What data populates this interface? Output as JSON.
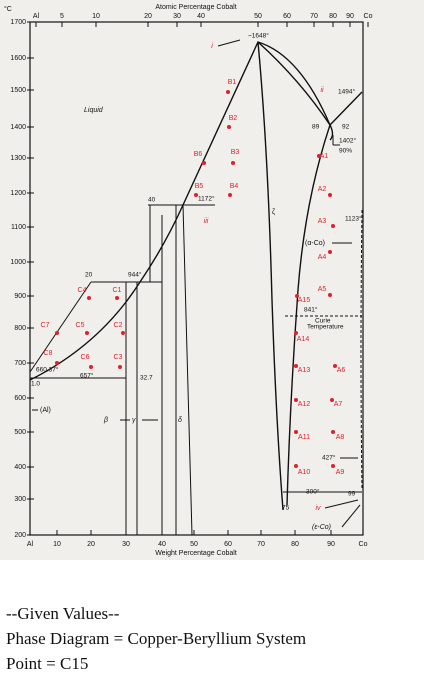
{
  "diagram": {
    "top_axis_title": "Atomic Percentage Cobalt",
    "bottom_axis_title": "Weight Percentage Cobalt",
    "temperature_unit": "°C",
    "top_ticks": [
      "Al",
      "5",
      "10",
      "20",
      "30",
      "40",
      "50",
      "60",
      "70",
      "80",
      "90",
      "Co"
    ],
    "bottom_ticks": [
      "Al",
      "10",
      "20",
      "30",
      "40",
      "50",
      "60",
      "70",
      "80",
      "90",
      "Co"
    ],
    "left_ticks": [
      "1700",
      "1600",
      "1500",
      "1400",
      "1300",
      "1200",
      "1100",
      "1000",
      "900",
      "800",
      "700",
      "600",
      "500",
      "400",
      "300",
      "200"
    ],
    "phases": [
      "Liquid",
      "ζ",
      "(α-Co)",
      "(ε-Co)",
      "β",
      "γ",
      "δ",
      "(Al)"
    ],
    "annotations": [
      "~1648°",
      "1494°",
      "89",
      "92",
      "1402°",
      "90%",
      "1172°",
      "40",
      "1123°",
      "944°",
      "20",
      "841°",
      "Curie",
      "Temperature",
      "660.37°",
      "657°",
      "32.7",
      "1.0",
      "427°",
      "300°",
      "75",
      "99"
    ],
    "points": [
      "B1",
      "B2",
      "B3",
      "B4",
      "B5",
      "B6",
      "C1",
      "C2",
      "C3",
      "C4",
      "C5",
      "C6",
      "C7",
      "C8",
      "A1",
      "A2",
      "A3",
      "A4",
      "A5",
      "A6",
      "A7",
      "A8",
      "A9",
      "A10",
      "A11",
      "A12",
      "A13",
      "A14",
      "A15"
    ],
    "reactions": [
      "i",
      "ii",
      "iii",
      "iv"
    ]
  },
  "given": {
    "heading": "--Given Values--",
    "line1": "Phase Diagram = Copper-Beryllium System",
    "line2": "Point = C15"
  }
}
